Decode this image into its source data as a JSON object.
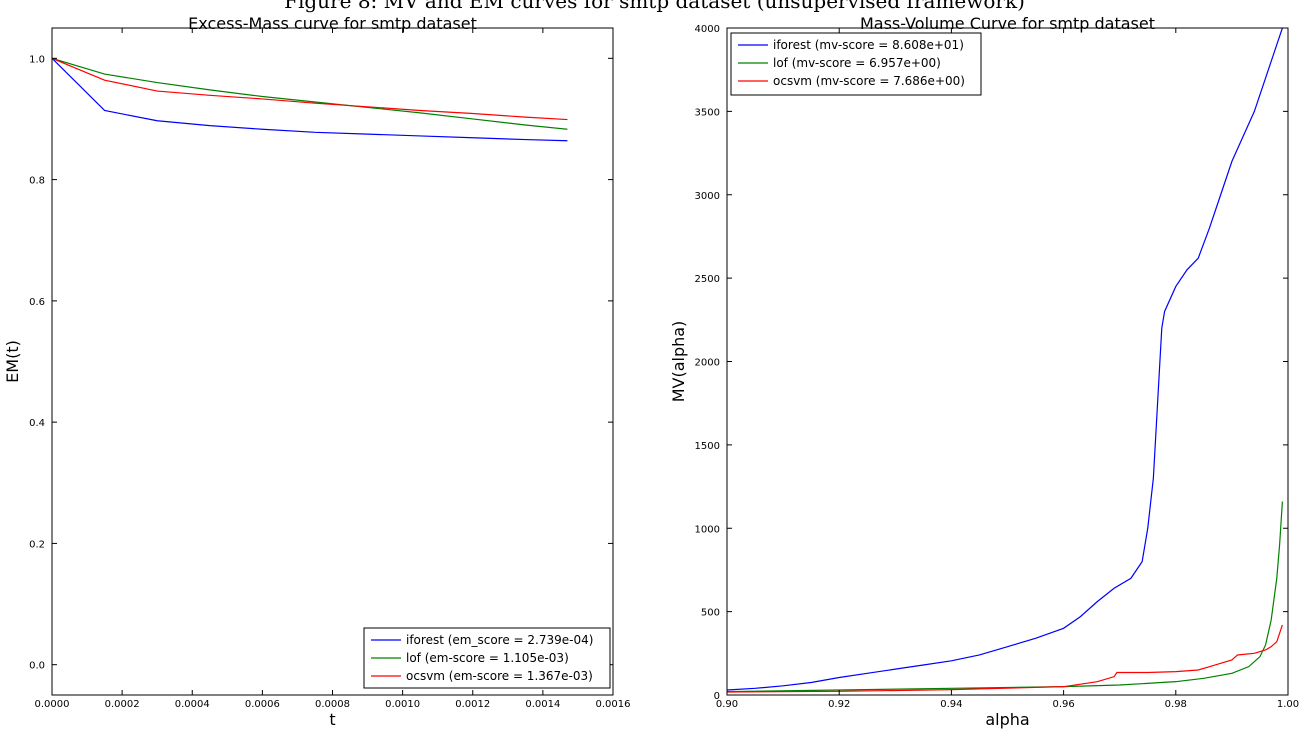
{
  "figure": {
    "caption": "Figure 8: MV and EM curves for smtp dataset (unsupervised framework)"
  },
  "chart_data": [
    {
      "type": "line",
      "title": "Excess-Mass curve for smtp dataset",
      "xlabel": "t",
      "ylabel": "EM(t)",
      "xlim": [
        0,
        0.0016
      ],
      "ylim": [
        -0.05,
        1.05
      ],
      "xticks": [
        0,
        0.0002,
        0.0004,
        0.0006,
        0.0008,
        0.001,
        0.0012,
        0.0014,
        0.0016
      ],
      "xtick_labels": [
        "0.0000",
        "0.0002",
        "0.0004",
        "0.0006",
        "0.0008",
        "0.0010",
        "0.0012",
        "0.0014",
        "0.0016"
      ],
      "yticks": [
        0,
        0.2,
        0.4,
        0.6,
        0.8,
        1.0
      ],
      "ytick_labels": [
        "0.0",
        "0.2",
        "0.4",
        "0.6",
        "0.8",
        "1.0"
      ],
      "grid": false,
      "legend_position": "lower-right",
      "series": [
        {
          "name": "iforest (em_score = 2.739e-04)",
          "color": "#0000ff",
          "x": [
            0,
            0.00015,
            0.0003,
            0.00045,
            0.0006,
            0.00075,
            0.0009,
            0.00105,
            0.0012,
            0.00135,
            0.00147
          ],
          "y": [
            1.0,
            0.914,
            0.897,
            0.889,
            0.883,
            0.878,
            0.875,
            0.872,
            0.869,
            0.866,
            0.864
          ]
        },
        {
          "name": "lof (em-score = 1.105e-03)",
          "color": "#008000",
          "x": [
            0,
            0.00015,
            0.0003,
            0.00045,
            0.0006,
            0.00075,
            0.0009,
            0.00105,
            0.0012,
            0.00135,
            0.00147
          ],
          "y": [
            1.0,
            0.974,
            0.96,
            0.948,
            0.937,
            0.928,
            0.919,
            0.91,
            0.9,
            0.89,
            0.883
          ]
        },
        {
          "name": "ocsvm (em-score = 1.367e-03)",
          "color": "#ff0000",
          "x": [
            0,
            0.00015,
            0.0003,
            0.00045,
            0.0006,
            0.00075,
            0.0009,
            0.00105,
            0.0012,
            0.00135,
            0.00147
          ],
          "y": [
            1.0,
            0.964,
            0.946,
            0.939,
            0.933,
            0.926,
            0.92,
            0.914,
            0.909,
            0.903,
            0.899
          ]
        }
      ]
    },
    {
      "type": "line",
      "title": "Mass-Volume Curve for smtp dataset",
      "xlabel": "alpha",
      "ylabel": "MV(alpha)",
      "xlim": [
        0.9,
        1.0
      ],
      "ylim": [
        0,
        4000
      ],
      "xticks": [
        0.9,
        0.92,
        0.94,
        0.96,
        0.98,
        1.0
      ],
      "xtick_labels": [
        "0.90",
        "0.92",
        "0.94",
        "0.96",
        "0.98",
        "1.00"
      ],
      "yticks": [
        0,
        500,
        1000,
        1500,
        2000,
        2500,
        3000,
        3500,
        4000
      ],
      "ytick_labels": [
        "0",
        "500",
        "1000",
        "1500",
        "2000",
        "2500",
        "3000",
        "3500",
        "4000"
      ],
      "grid": false,
      "legend_position": "upper-left",
      "series": [
        {
          "name": "iforest (mv-score = 8.608e+01)",
          "color": "#0000ff",
          "x": [
            0.9,
            0.905,
            0.91,
            0.915,
            0.92,
            0.925,
            0.93,
            0.935,
            0.94,
            0.945,
            0.95,
            0.955,
            0.96,
            0.963,
            0.966,
            0.969,
            0.972,
            0.974,
            0.975,
            0.976,
            0.9765,
            0.977,
            0.9775,
            0.978,
            0.98,
            0.982,
            0.984,
            0.986,
            0.988,
            0.99,
            0.992,
            0.994,
            0.996,
            0.998,
            0.999
          ],
          "y": [
            30,
            40,
            55,
            75,
            105,
            130,
            155,
            180,
            205,
            240,
            290,
            340,
            400,
            470,
            560,
            640,
            700,
            800,
            1000,
            1300,
            1600,
            1900,
            2200,
            2300,
            2450,
            2550,
            2620,
            2800,
            3000,
            3200,
            3350,
            3500,
            3700,
            3900,
            4000
          ]
        },
        {
          "name": "lof (mv-score = 6.957e+00)",
          "color": "#008000",
          "x": [
            0.9,
            0.92,
            0.94,
            0.96,
            0.97,
            0.98,
            0.985,
            0.99,
            0.993,
            0.995,
            0.996,
            0.997,
            0.998,
            0.9985,
            0.999
          ],
          "y": [
            20,
            30,
            40,
            50,
            60,
            80,
            100,
            130,
            170,
            230,
            300,
            450,
            700,
            900,
            1160
          ]
        },
        {
          "name": "ocsvm (mv-score = 7.686e+00)",
          "color": "#ff0000",
          "x": [
            0.9,
            0.92,
            0.94,
            0.96,
            0.966,
            0.969,
            0.9695,
            0.975,
            0.98,
            0.984,
            0.986,
            0.988,
            0.99,
            0.991,
            0.994,
            0.996,
            0.997,
            0.998,
            0.9985,
            0.999
          ],
          "y": [
            18,
            22,
            32,
            50,
            80,
            110,
            135,
            135,
            140,
            150,
            170,
            190,
            210,
            240,
            250,
            270,
            290,
            320,
            370,
            420
          ]
        }
      ]
    }
  ]
}
